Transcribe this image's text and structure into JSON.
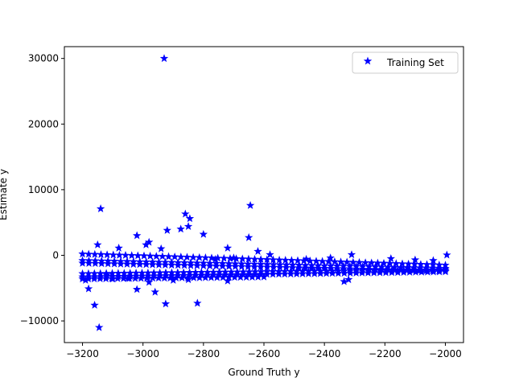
{
  "chart_data": {
    "type": "scatter",
    "xlabel": "Ground Truth y",
    "ylabel": "Estimate y",
    "xlim": [
      -3260,
      -1940
    ],
    "ylim": [
      -13300,
      31800
    ],
    "xticks": [
      -3200,
      -3000,
      -2800,
      -2600,
      -2400,
      -2200,
      -2000
    ],
    "xtick_labels": [
      "−3200",
      "−3000",
      "−2800",
      "−2600",
      "−2400",
      "−2200",
      "−2000"
    ],
    "yticks": [
      -10000,
      0,
      10000,
      20000,
      30000
    ],
    "ytick_labels": [
      "−10000",
      "0",
      "10000",
      "20000",
      "30000"
    ],
    "grid": false,
    "legend": {
      "position": "top-right",
      "entries": [
        "Training Set"
      ]
    },
    "series": [
      {
        "name": "Training Set",
        "marker": "star",
        "color": "#0000ff",
        "bands": [
          {
            "x_from": -3200,
            "x_to": -2000,
            "y_from": 200,
            "y_to": -1500,
            "count": 60
          },
          {
            "x_from": -3200,
            "x_to": -2000,
            "y_from": -800,
            "y_to": -2000,
            "count": 58
          },
          {
            "x_from": -3200,
            "x_to": -2000,
            "y_from": -1200,
            "y_to": -2400,
            "count": 58
          },
          {
            "x_from": -3200,
            "x_to": -2000,
            "y_from": -2800,
            "y_to": -2200,
            "count": 62
          },
          {
            "x_from": -3200,
            "x_to": -2000,
            "y_from": -3300,
            "y_to": -2500,
            "count": 62
          },
          {
            "x_from": -3200,
            "x_to": -2600,
            "y_from": -3600,
            "y_to": -3300,
            "count": 32
          }
        ],
        "points": [
          [
            -2930,
            30000
          ],
          [
            -3140,
            7100
          ],
          [
            -2645,
            7600
          ],
          [
            -2860,
            6300
          ],
          [
            -2845,
            5600
          ],
          [
            -2850,
            4400
          ],
          [
            -2875,
            4000
          ],
          [
            -2920,
            3800
          ],
          [
            -2800,
            3200
          ],
          [
            -3020,
            3000
          ],
          [
            -2650,
            2700
          ],
          [
            -2980,
            2000
          ],
          [
            -2990,
            1600
          ],
          [
            -3150,
            1600
          ],
          [
            -2720,
            1100
          ],
          [
            -2940,
            1000
          ],
          [
            -3080,
            1100
          ],
          [
            -2620,
            600
          ],
          [
            -2580,
            100
          ],
          [
            -1995,
            50
          ],
          [
            -2310,
            100
          ],
          [
            -2380,
            -400
          ],
          [
            -2180,
            -500
          ],
          [
            -2100,
            -700
          ],
          [
            -2040,
            -800
          ],
          [
            -2460,
            -600
          ],
          [
            -2700,
            -400
          ],
          [
            -2760,
            -600
          ],
          [
            -3180,
            -5100
          ],
          [
            -3160,
            -7600
          ],
          [
            -3145,
            -11000
          ],
          [
            -2925,
            -7400
          ],
          [
            -2820,
            -7300
          ],
          [
            -2960,
            -5600
          ],
          [
            -3020,
            -5200
          ],
          [
            -2335,
            -4000
          ],
          [
            -2320,
            -3700
          ],
          [
            -2720,
            -3900
          ],
          [
            -3190,
            -3800
          ],
          [
            -3100,
            -3600
          ],
          [
            -3050,
            -3500
          ],
          [
            -2900,
            -3800
          ],
          [
            -2850,
            -3700
          ],
          [
            -2980,
            -4100
          ],
          [
            -3120,
            -3000
          ]
        ]
      }
    ]
  }
}
